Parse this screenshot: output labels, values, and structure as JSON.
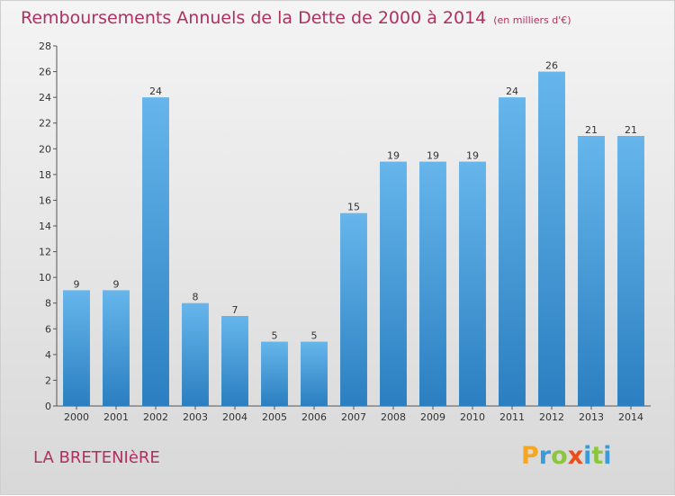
{
  "title": "Remboursements Annuels de la Dette de 2000 à 2014",
  "unit": "(en milliers d'€)",
  "location": "LA BRETENIèRE",
  "logo": {
    "text": "Proxiti",
    "letters": [
      "P",
      "r",
      "o",
      "x",
      "i",
      "t",
      "i"
    ],
    "colors": [
      "#f5a623",
      "#3a9bd9",
      "#8cc63f",
      "#e94e1b",
      "#3a9bd9",
      "#8cc63f",
      "#3a9bd9"
    ]
  },
  "colors": {
    "bar_light": "#66b6ec",
    "bar_dark": "#2b7fc0",
    "title": "#b03060"
  },
  "chart_data": {
    "type": "bar",
    "categories": [
      "2000",
      "2001",
      "2002",
      "2003",
      "2004",
      "2005",
      "2006",
      "2007",
      "2008",
      "2009",
      "2010",
      "2011",
      "2012",
      "2013",
      "2014"
    ],
    "values": [
      9,
      9,
      24,
      8,
      7,
      5,
      5,
      15,
      19,
      19,
      19,
      24,
      26,
      21,
      21
    ],
    "data_labels": [
      "9",
      "9",
      "24",
      "8",
      "7",
      "5",
      "5",
      "15",
      "19",
      "19",
      "19",
      "24",
      "26",
      "21",
      "21"
    ],
    "ylim": [
      0,
      28
    ],
    "yticks": [
      0,
      2,
      4,
      6,
      8,
      10,
      12,
      14,
      16,
      18,
      20,
      22,
      24,
      26,
      28
    ],
    "ytick_labels": [
      "0",
      "2",
      "4",
      "6",
      "8",
      "10",
      "12",
      "14",
      "16",
      "18",
      "20",
      "22",
      "24",
      "26",
      "28"
    ],
    "grid": false,
    "legend": "none"
  }
}
